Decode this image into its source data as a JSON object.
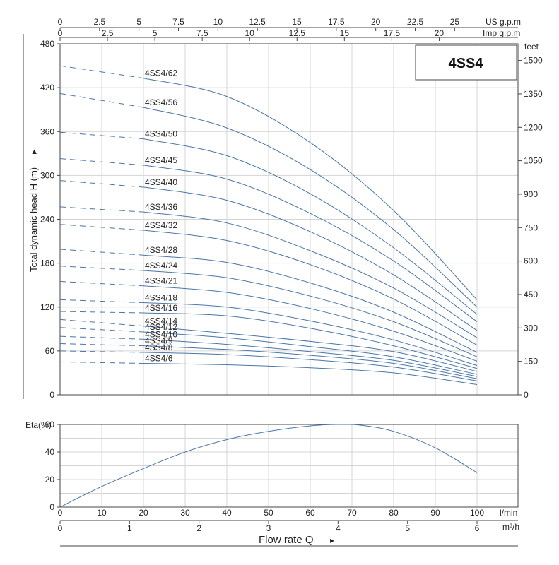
{
  "chart_data": [
    {
      "type": "line",
      "title": "4SS4",
      "ylabel": "Total dynamic head H (m)",
      "ylabel_right_unit": "feet",
      "x_unit_top_1": "US g.p.m",
      "x_unit_top_2": "Imp g.p.m",
      "xlim": [
        0,
        100
      ],
      "ylim": [
        0,
        480
      ],
      "y_ticks": [
        0,
        60,
        120,
        180,
        240,
        300,
        360,
        420,
        480
      ],
      "y_ticks_feet": [
        0,
        150,
        300,
        450,
        600,
        750,
        900,
        1050,
        1200,
        1350,
        1500
      ],
      "x_ticks_us_gpm": [
        0,
        2.5,
        5,
        7.5,
        10,
        12.5,
        15,
        17.5,
        20,
        22.5,
        25
      ],
      "x_ticks_imp_gpm": [
        0,
        2.5,
        5,
        7.5,
        10,
        12.5,
        15,
        17.5,
        20
      ],
      "x": [
        0,
        20,
        40,
        60,
        80,
        100
      ],
      "series": [
        {
          "name": "4SS4/62",
          "values": [
            450,
            433,
            408,
            345,
            252,
            130
          ]
        },
        {
          "name": "4SS4/56",
          "values": [
            412,
            393,
            365,
            308,
            226,
            120
          ]
        },
        {
          "name": "4SS4/50",
          "values": [
            359,
            350,
            327,
            275,
            201,
            110
          ]
        },
        {
          "name": "4SS4/45",
          "values": [
            323,
            314,
            295,
            248,
            183,
            100
          ]
        },
        {
          "name": "4SS4/40",
          "values": [
            293,
            284,
            266,
            223,
            164,
            88
          ]
        },
        {
          "name": "4SS4/36",
          "values": [
            257,
            250,
            235,
            197,
            146,
            78
          ]
        },
        {
          "name": "4SS4/32",
          "values": [
            233,
            225,
            211,
            178,
            131,
            68
          ]
        },
        {
          "name": "4SS4/28",
          "values": [
            199,
            191,
            181,
            153,
            113,
            58
          ]
        },
        {
          "name": "4SS4/24",
          "values": [
            176,
            170,
            160,
            135,
            100,
            52
          ]
        },
        {
          "name": "4SS4/21",
          "values": [
            155,
            149,
            140,
            118,
            87,
            46
          ]
        },
        {
          "name": "4SS4/18",
          "values": [
            130,
            126,
            120,
            101,
            75,
            40
          ]
        },
        {
          "name": "4SS4/16",
          "values": [
            114,
            112,
            108,
            91,
            67,
            36
          ]
        },
        {
          "name": "4SS4/14",
          "values": [
            103,
            94,
            84,
            73,
            59,
            32
          ]
        },
        {
          "name": "4SS4/12",
          "values": [
            92,
            86,
            78,
            66,
            52,
            28
          ]
        },
        {
          "name": "4SS4/10",
          "values": [
            80,
            76,
            69,
            59,
            47,
            25
          ]
        },
        {
          "name": "4SS4/9",
          "values": [
            70,
            67,
            62,
            54,
            43,
            22
          ]
        },
        {
          "name": "4SS4/8",
          "values": [
            60,
            58,
            55,
            48,
            38,
            19
          ]
        },
        {
          "name": "4SS4/6",
          "values": [
            45,
            43,
            41,
            37,
            30,
            14
          ]
        }
      ],
      "dashed_until_x": 20
    },
    {
      "type": "line",
      "ylabel": "Eta(%)",
      "xlabel": "Flow rate Q",
      "x_unit": "l/min",
      "x2_unit": "m³/h",
      "xlim": [
        0,
        100
      ],
      "ylim": [
        0,
        60
      ],
      "y_ticks": [
        0,
        20,
        40,
        60
      ],
      "x_ticks": [
        0,
        10,
        20,
        30,
        40,
        50,
        60,
        70,
        80,
        90,
        100
      ],
      "x2_ticks": [
        0,
        1,
        2,
        3,
        4,
        5,
        6
      ],
      "series": [
        {
          "x": [
            0,
            10,
            20,
            30,
            40,
            50,
            60,
            67,
            72,
            80,
            90,
            100
          ],
          "values": [
            0,
            15,
            28,
            40,
            49,
            55,
            59,
            60,
            59.5,
            55,
            43,
            25
          ]
        }
      ]
    }
  ]
}
